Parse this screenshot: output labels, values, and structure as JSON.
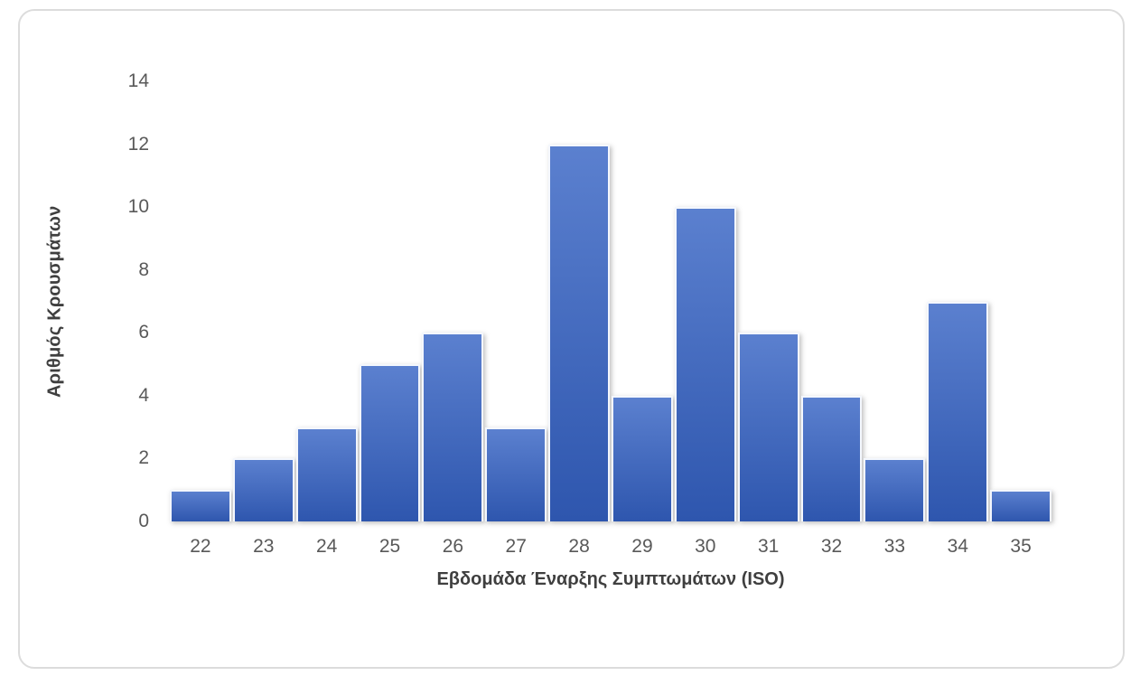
{
  "chart_data": {
    "type": "bar",
    "subtype": "histogram",
    "title": "",
    "xlabel": "Εβδομάδα Έναρξης Συμπτωμάτων (ISO)",
    "ylabel": "Αριθμός Κρουσμάτων",
    "categories": [
      "22",
      "23",
      "24",
      "25",
      "26",
      "27",
      "28",
      "29",
      "30",
      "31",
      "32",
      "33",
      "34",
      "35"
    ],
    "values": [
      1,
      2,
      3,
      5,
      6,
      3,
      12,
      4,
      10,
      6,
      4,
      2,
      7,
      1
    ],
    "ylim": [
      0,
      14
    ],
    "yticks": [
      0,
      2,
      4,
      6,
      8,
      10,
      12,
      14
    ],
    "grid": false,
    "legend": null,
    "bar_gap": "none",
    "colors": {
      "bar_gradient_top": "#5b80cf",
      "bar_gradient_bottom": "#2e56ae",
      "bar_outline": "#f4f7fd",
      "tick_label": "#595959",
      "axis_title": "#3f3f3f",
      "card_border": "#dcdcdc",
      "background": "#ffffff"
    }
  }
}
